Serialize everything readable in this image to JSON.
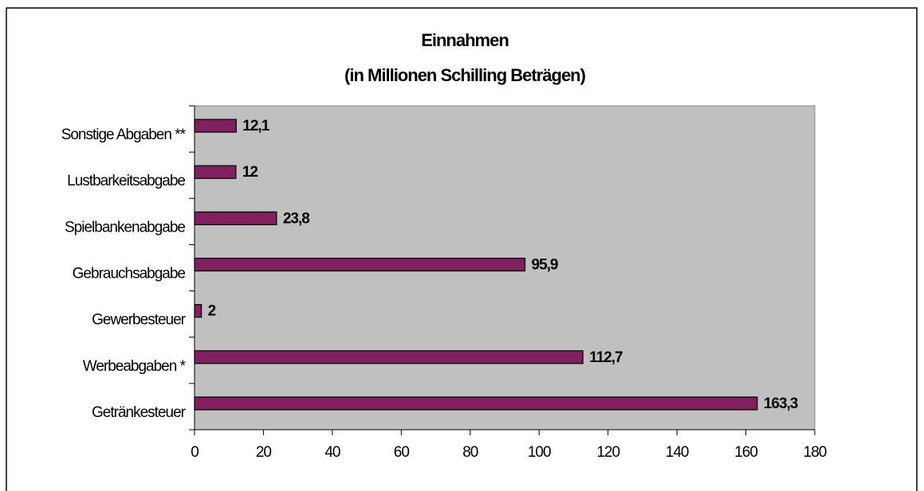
{
  "chart_data": {
    "type": "hbar",
    "title": "Einnahmen",
    "subtitle": "(in Millionen Schilling Beträgen)",
    "categories": [
      "Sonstige Abgaben **",
      "Lustbarkeitsabgabe",
      "Spielbankenabgabe",
      "Gebrauchsabgabe",
      "Gewerbesteuer",
      "Werbeabgaben *",
      "Getränkesteuer"
    ],
    "values": [
      12.1,
      12,
      23.8,
      95.9,
      2,
      112.7,
      163.3
    ],
    "value_labels": [
      "12,1",
      "12",
      "23,8",
      "95,9",
      "2",
      "112,7",
      "163,3"
    ],
    "color": "#80205f",
    "xlim": [
      0,
      180
    ],
    "xticks": [
      0,
      20,
      40,
      60,
      80,
      100,
      120,
      140,
      160,
      180
    ]
  }
}
